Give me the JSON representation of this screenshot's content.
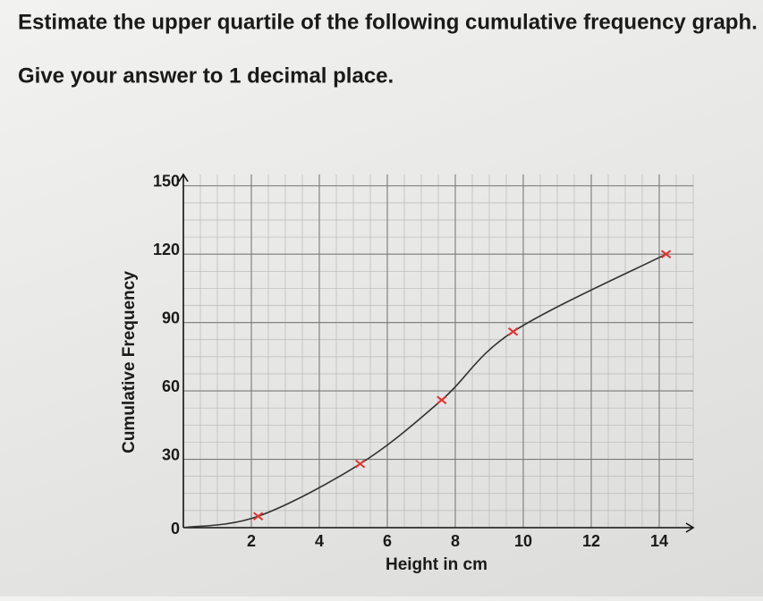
{
  "question": "Estimate the upper quartile of the following cumulative frequency graph.",
  "instruction": "Give your answer to 1 decimal place.",
  "chart_data": {
    "type": "line",
    "x_label": "Height in cm",
    "y_label": "Cumulative Frequency",
    "xlim": [
      0,
      15
    ],
    "ylim": [
      0,
      155
    ],
    "xticks": [
      2,
      4,
      6,
      8,
      10,
      12,
      14
    ],
    "yticks": [
      0,
      30,
      60,
      90,
      120,
      150
    ],
    "grid": true,
    "grid_minor": {
      "x": 0.5,
      "y": 7.5
    },
    "series": [
      {
        "color": "#333333",
        "x": [
          0,
          2.2,
          5.2,
          7.6,
          9.7,
          14.2
        ],
        "values": [
          0,
          5,
          28,
          56,
          86,
          120
        ]
      },
      {
        "color": "#e0332f",
        "marker": "x",
        "x": [
          2.2,
          5.2,
          7.6,
          9.7,
          14.2
        ],
        "values": [
          5,
          28,
          56,
          86,
          120
        ]
      }
    ]
  }
}
